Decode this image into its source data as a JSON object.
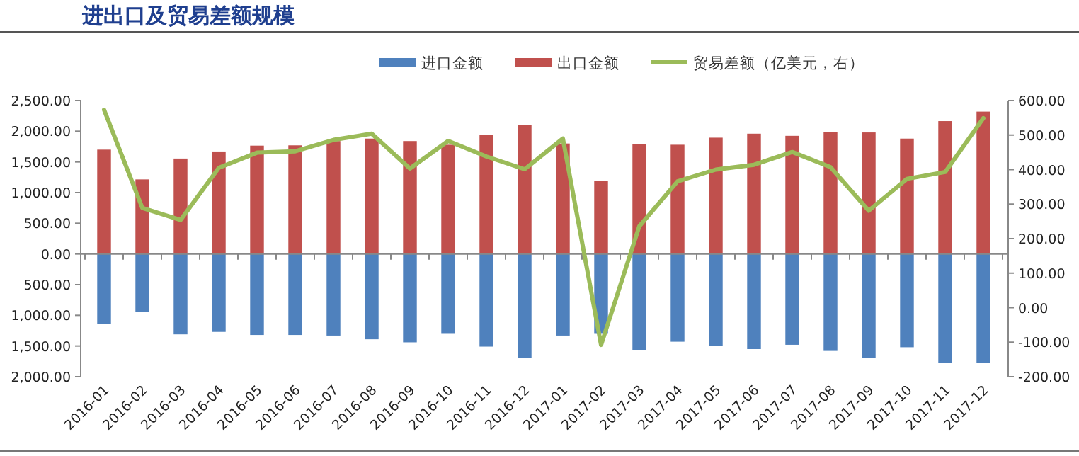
{
  "chart_data": {
    "type": "bar",
    "title": "进出口及贸易差额规模",
    "stacked": true,
    "legend": "top",
    "categories": [
      "2016-01",
      "2016-02",
      "2016-03",
      "2016-04",
      "2016-05",
      "2016-06",
      "2016-07",
      "2016-08",
      "2016-09",
      "2016-10",
      "2016-11",
      "2016-12",
      "2017-01",
      "2017-02",
      "2017-03",
      "2017-04",
      "2017-05",
      "2017-06",
      "2017-07",
      "2017-08",
      "2017-09",
      "2017-10",
      "2017-11",
      "2017-12"
    ],
    "series": [
      {
        "name": "进口金额",
        "color": "#4f81bd",
        "values": [
          -1140,
          -940,
          -1310,
          -1270,
          -1320,
          -1320,
          -1330,
          -1390,
          -1440,
          -1290,
          -1510,
          -1700,
          -1330,
          -1290,
          -1570,
          -1430,
          -1500,
          -1550,
          -1480,
          -1580,
          -1700,
          -1520,
          -1780,
          -1780
        ]
      },
      {
        "name": "出口金额",
        "color": "#c0504d",
        "values": [
          1700,
          1215,
          1555,
          1670,
          1765,
          1770,
          1840,
          1880,
          1840,
          1780,
          1945,
          2100,
          1800,
          1185,
          1795,
          1780,
          1895,
          1960,
          1925,
          1990,
          1980,
          1880,
          2165,
          2320
        ]
      },
      {
        "name": "贸易差额（亿美元，右）",
        "type": "line",
        "axis": "y2",
        "color": "#9bbb59",
        "values": [
          573,
          289,
          254,
          405,
          449,
          453,
          486,
          504,
          403,
          483,
          438,
          401,
          490,
          -108,
          236,
          366,
          400,
          414,
          451,
          407,
          281,
          373,
          393,
          549
        ]
      }
    ],
    "ylim": [
      -2000,
      2500
    ],
    "yticks": [
      {
        "value": 2500,
        "label": "2,500.00"
      },
      {
        "value": 2000,
        "label": "2,000.00"
      },
      {
        "value": 1500,
        "label": "1,500.00"
      },
      {
        "value": 1000,
        "label": "1,000.00"
      },
      {
        "value": 500,
        "label": "500.00"
      },
      {
        "value": 0,
        "label": "0.00"
      },
      {
        "value": -500,
        "label": "500.00"
      },
      {
        "value": -1000,
        "label": "1,000.00"
      },
      {
        "value": -1500,
        "label": "1,500.00"
      },
      {
        "value": -2000,
        "label": "2,000.00"
      }
    ],
    "y2lim": [
      -200,
      600
    ],
    "y2ticks": [
      {
        "value": 600,
        "label": "600.00"
      },
      {
        "value": 500,
        "label": "500.00"
      },
      {
        "value": 400,
        "label": "400.00"
      },
      {
        "value": 300,
        "label": "300.00"
      },
      {
        "value": 200,
        "label": "200.00"
      },
      {
        "value": 100,
        "label": "100.00"
      },
      {
        "value": 0,
        "label": "0.00"
      },
      {
        "value": -100,
        "label": "-100.00"
      },
      {
        "value": -200,
        "label": "-200.00"
      }
    ]
  }
}
